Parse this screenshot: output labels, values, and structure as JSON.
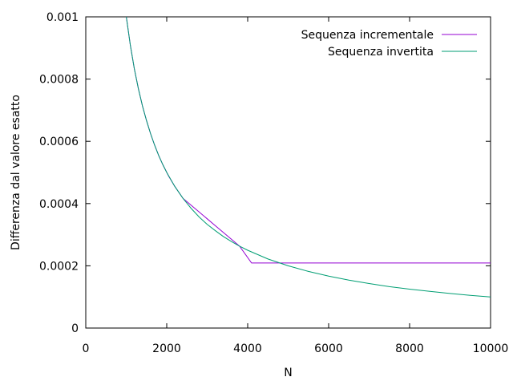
{
  "chart_data": {
    "type": "line",
    "title": "",
    "xlabel": "N",
    "ylabel": "Differenza dal valore esatto",
    "xlim": [
      0,
      10000
    ],
    "ylim": [
      0,
      0.001
    ],
    "xticks": [
      "0",
      "2000",
      "4000",
      "6000",
      "8000",
      "10000"
    ],
    "yticks": [
      "0",
      "0.0002",
      "0.0004",
      "0.0006",
      "0.0008",
      "0.001"
    ],
    "xtick_values": [
      0,
      2000,
      4000,
      6000,
      8000,
      10000
    ],
    "ytick_values": [
      0,
      0.0002,
      0.0004,
      0.0006,
      0.0008,
      0.001
    ],
    "grid": false,
    "legend_position": "top-right",
    "series": [
      {
        "name": "Sequenza incrementale",
        "color": "#9400d3",
        "x": [
          980,
          1100,
          1200,
          1300,
          1400,
          1500,
          1600,
          1700,
          1800,
          1900,
          2048,
          2200,
          2400,
          2600,
          2800,
          3000,
          3200,
          3400,
          3600,
          3800,
          4096,
          5000,
          6000,
          7000,
          8000,
          9000,
          10000
        ],
        "y": [
          0.00102,
          0.00091,
          0.000833,
          0.000769,
          0.000714,
          0.000667,
          0.000625,
          0.000588,
          0.000555,
          0.000526,
          0.000488,
          0.000455,
          0.000417,
          0.000395,
          0.000373,
          0.000351,
          0.000329,
          0.000307,
          0.000285,
          0.000263,
          0.000209,
          0.000209,
          0.000209,
          0.000209,
          0.000209,
          0.000209,
          0.000209
        ]
      },
      {
        "name": "Sequenza invertita",
        "color": "#009e73",
        "x": [
          980,
          1100,
          1200,
          1300,
          1400,
          1500,
          1600,
          1700,
          1800,
          1900,
          2000,
          2200,
          2400,
          2600,
          2800,
          3000,
          3200,
          3400,
          3600,
          3800,
          4000,
          4500,
          5000,
          5500,
          6000,
          6500,
          7000,
          7500,
          8000,
          8500,
          9000,
          9500,
          10000
        ],
        "y": [
          0.00102,
          0.00091,
          0.000833,
          0.000769,
          0.000714,
          0.000667,
          0.000625,
          0.000588,
          0.000555,
          0.000526,
          0.0005,
          0.000455,
          0.000417,
          0.000385,
          0.000357,
          0.000333,
          0.000313,
          0.000294,
          0.000278,
          0.000263,
          0.00025,
          0.000222,
          0.0002,
          0.000182,
          0.000167,
          0.000154,
          0.000143,
          0.000133,
          0.000125,
          0.000118,
          0.000111,
          0.000105,
          0.0001
        ]
      }
    ]
  }
}
